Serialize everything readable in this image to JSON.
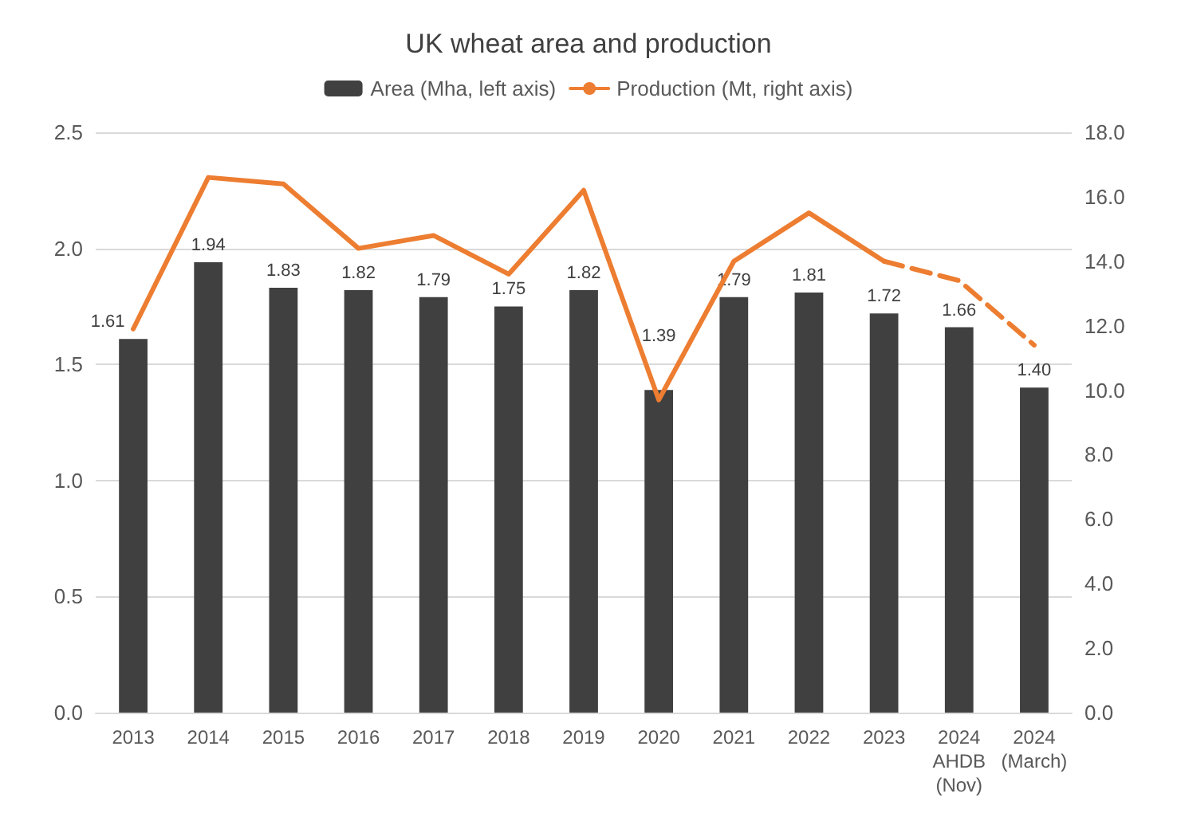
{
  "chart_data": {
    "type": "bar",
    "title": "UK wheat area and production",
    "categories": [
      "2013",
      "2014",
      "2015",
      "2016",
      "2017",
      "2018",
      "2019",
      "2020",
      "2021",
      "2022",
      "2023",
      "2024\nAHDB\n(Nov)",
      "2024\n(March)"
    ],
    "series": [
      {
        "name": "Area (Mha, left axis)",
        "color": "#404040",
        "values": [
          1.61,
          1.94,
          1.83,
          1.82,
          1.79,
          1.75,
          1.82,
          1.39,
          1.79,
          1.81,
          1.72,
          1.66,
          1.4
        ],
        "value_labels": [
          "1.61",
          "1.94",
          "1.83",
          "1.82",
          "1.79",
          "1.75",
          "1.82",
          "1.39",
          "1.79",
          "1.81",
          "1.72",
          "1.66",
          "1.40"
        ]
      },
      {
        "name": "Production (Mt, right axis)",
        "type": "line",
        "axis": "y2",
        "color": "#ed7d31",
        "line_style": "solid",
        "values": [
          11.9,
          16.6,
          16.4,
          14.4,
          14.8,
          13.6,
          16.2,
          9.7,
          14.0,
          15.5,
          14.0,
          null,
          null
        ]
      },
      {
        "type": "line",
        "axis": "y2",
        "color": "#ed7d31",
        "line_style": "dashed",
        "values": [
          null,
          null,
          null,
          null,
          null,
          null,
          null,
          null,
          null,
          null,
          14.0,
          13.4,
          11.4
        ]
      }
    ],
    "ylim": [
      0,
      2.5
    ],
    "yticks": [
      {
        "value": 0,
        "label": "0.0"
      },
      {
        "value": 0.5,
        "label": "0.5"
      },
      {
        "value": 1,
        "label": "1.0"
      },
      {
        "value": 1.5,
        "label": "1.5"
      },
      {
        "value": 2,
        "label": "2.0"
      },
      {
        "value": 2.5,
        "label": "2.5"
      }
    ],
    "y2lim": [
      0,
      18
    ],
    "y2ticks": [
      {
        "value": 0,
        "label": "0.0"
      },
      {
        "value": 2,
        "label": "2.0"
      },
      {
        "value": 4,
        "label": "4.0"
      },
      {
        "value": 6,
        "label": "6.0"
      },
      {
        "value": 8,
        "label": "8.0"
      },
      {
        "value": 10,
        "label": "10.0"
      },
      {
        "value": 12,
        "label": "12.0"
      },
      {
        "value": 14,
        "label": "14.0"
      },
      {
        "value": 16,
        "label": "16.0"
      },
      {
        "value": 18,
        "label": "18.0"
      }
    ],
    "grid": "y",
    "legend": "top",
    "marker": "none"
  }
}
